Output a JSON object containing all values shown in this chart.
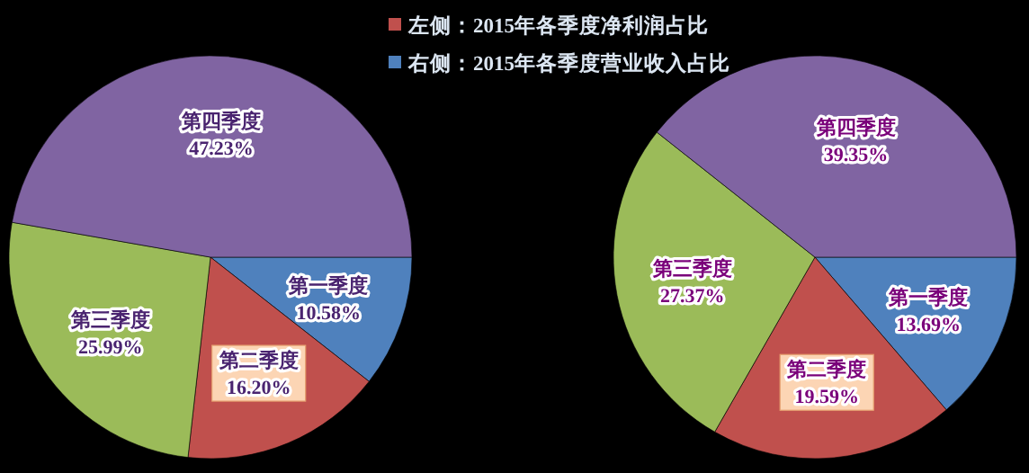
{
  "chart_data": [
    {
      "type": "pie",
      "title": "左侧：2015年各季度净利润占比",
      "categories": [
        "第一季度",
        "第二季度",
        "第三季度",
        "第四季度"
      ],
      "values": [
        10.58,
        16.2,
        25.99,
        47.23
      ],
      "value_labels": [
        "10.58%",
        "16.20%",
        "25.99%",
        "47.23%"
      ],
      "colors": [
        "#4f81bd",
        "#c0504d",
        "#9bbb59",
        "#8064a2"
      ]
    },
    {
      "type": "pie",
      "title": "右侧：2015年各季度营业收入占比",
      "categories": [
        "第一季度",
        "第二季度",
        "第三季度",
        "第四季度"
      ],
      "values": [
        13.69,
        19.59,
        27.37,
        39.35
      ],
      "value_labels": [
        "13.69%",
        "19.59%",
        "27.37%",
        "39.35%"
      ],
      "colors": [
        "#4f81bd",
        "#c0504d",
        "#9bbb59",
        "#8064a2"
      ]
    }
  ]
}
